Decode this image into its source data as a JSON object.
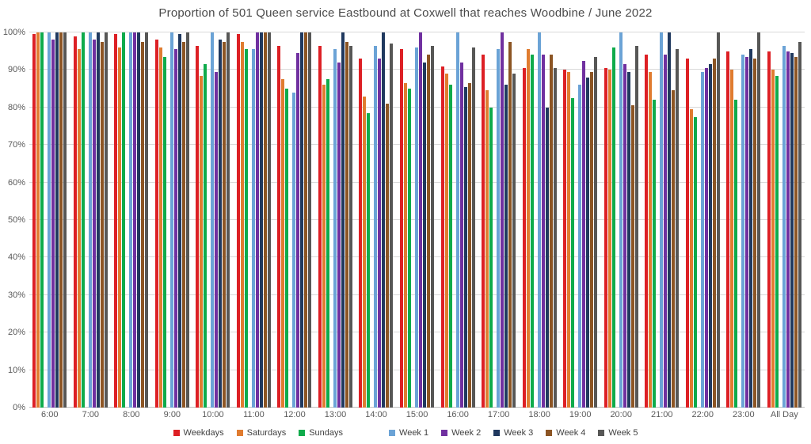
{
  "chart_data": {
    "type": "bar",
    "title": "Proportion of 501 Queen service Eastbound at Coxwell that reaches Woodbine / June 2022",
    "categories": [
      "6:00",
      "7:00",
      "8:00",
      "9:00",
      "10:00",
      "11:00",
      "12:00",
      "13:00",
      "14:00",
      "15:00",
      "16:00",
      "17:00",
      "18:00",
      "19:00",
      "20:00",
      "21:00",
      "22:00",
      "23:00",
      "All Day"
    ],
    "series": [
      {
        "name": "Weekdays",
        "color": "#dd2025",
        "values": [
          99.5,
          99,
          99.5,
          98,
          96.5,
          99.5,
          96.5,
          96.5,
          93,
          95.5,
          91,
          94,
          90.5,
          90,
          90.5,
          94,
          93,
          95,
          95
        ]
      },
      {
        "name": "Saturdays",
        "color": "#e07c30",
        "values": [
          100,
          95.5,
          96,
          96,
          88.5,
          97.5,
          87.5,
          86,
          83,
          86.5,
          89,
          84.5,
          95.5,
          89.5,
          90,
          89.5,
          79.5,
          90,
          90
        ]
      },
      {
        "name": "Sundays",
        "color": "#0fab4b",
        "values": [
          100,
          100,
          100,
          93.5,
          91.5,
          95.5,
          85,
          87.5,
          78.5,
          85,
          86,
          80,
          94,
          82.5,
          96,
          82,
          77.5,
          82,
          88.5
        ]
      },
      {
        "name": "Week 1",
        "color": "#6ba3d6",
        "values": [
          100,
          100,
          100,
          100,
          100,
          95.5,
          84,
          95.5,
          96.5,
          96,
          100,
          95.5,
          100,
          86,
          100,
          100,
          89.5,
          94,
          96.5
        ]
      },
      {
        "name": "Week 2",
        "color": "#7030a0",
        "values": [
          98,
          98,
          100,
          95.5,
          89.5,
          100,
          94.5,
          92,
          93,
          100,
          92,
          100,
          94,
          92.5,
          91.5,
          94,
          90.5,
          93.5,
          95
        ]
      },
      {
        "name": "Week 3",
        "color": "#20395f",
        "values": [
          100,
          100,
          100,
          99.5,
          98,
          100,
          100,
          100,
          100,
          92,
          85.5,
          86,
          80,
          88,
          89.5,
          100,
          91.5,
          95.5,
          94.5
        ]
      },
      {
        "name": "Week 4",
        "color": "#8c5524",
        "values": [
          100,
          97.5,
          97.5,
          97.5,
          97.5,
          100,
          100,
          97.5,
          81,
          94,
          86.5,
          97.5,
          94,
          89.5,
          80.5,
          84.5,
          93,
          93,
          93.5
        ]
      },
      {
        "name": "Week 5",
        "color": "#575756",
        "values": [
          100,
          100,
          100,
          100,
          100,
          100,
          100,
          96.5,
          97,
          96.5,
          96,
          89,
          90.5,
          93.5,
          96.5,
          95.5,
          100,
          100,
          97.5
        ]
      }
    ],
    "series_gap_after_index": 2,
    "ylim": [
      0,
      100
    ],
    "ytick_step": 10,
    "ytick_labels": [
      "0%",
      "10%",
      "20%",
      "30%",
      "40%",
      "50%",
      "60%",
      "70%",
      "80%",
      "90%",
      "100%"
    ],
    "xlabel": "",
    "ylabel": "",
    "grid": true,
    "legend_position": "bottom"
  },
  "colors": {
    "background": "#ffffff",
    "gridline": "#d9d9d9",
    "axis_text": "#595959",
    "title_text": "#4a4a4a"
  }
}
